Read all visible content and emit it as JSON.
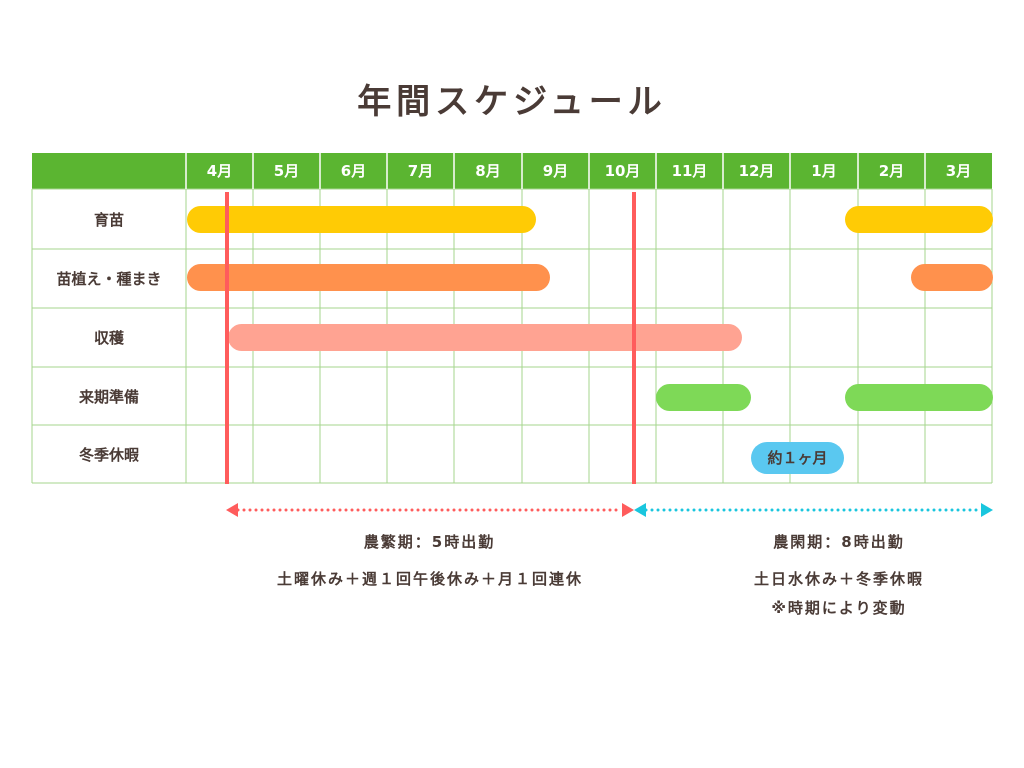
{
  "title": "年間スケジュール",
  "colors": {
    "header_green": "#5bb531",
    "grid_line": "#a6d68e",
    "seedling": "#ffcb05",
    "planting": "#ff914d",
    "harvest": "#ffa392",
    "prep": "#7ed957",
    "vacation": "#5ac8f0",
    "busy_marker": "#ff5c5c",
    "off_arrow": "#19c6de"
  },
  "months": [
    "4月",
    "5月",
    "6月",
    "7月",
    "8月",
    "9月",
    "10月",
    "11月",
    "12月",
    "1月",
    "2月",
    "3月"
  ],
  "rows": [
    {
      "label": "育苗"
    },
    {
      "label": "苗植え・種まき"
    },
    {
      "label": "収穫"
    },
    {
      "label": "来期準備"
    },
    {
      "label": "冬季休暇"
    }
  ],
  "vacation_label": "約１ヶ月",
  "busy_period": {
    "heading": "農繁期：5時出勤",
    "detail": "土曜休み＋週１回午後休み＋月１回連休"
  },
  "off_period": {
    "heading": "農閑期：8時出勤",
    "detail": "土日水休み＋冬季休暇",
    "note": "※時期により変動"
  }
}
